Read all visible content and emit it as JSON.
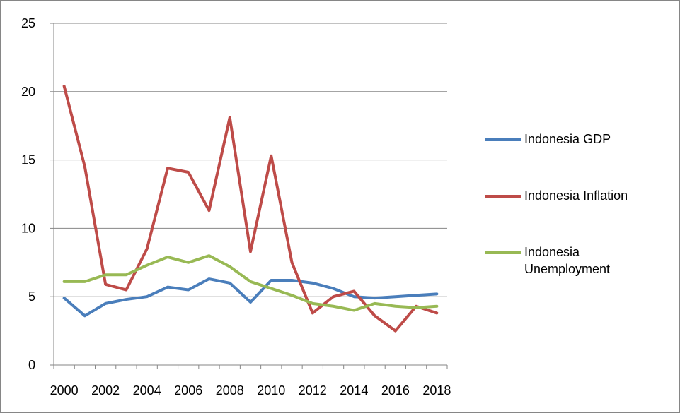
{
  "chart_data": {
    "type": "line",
    "categories": [
      "2000",
      null,
      "2002",
      null,
      "2004",
      null,
      "2006",
      null,
      "2008",
      null,
      "2010",
      null,
      "2012",
      null,
      "2014",
      null,
      "2016",
      null,
      "2018"
    ],
    "series": [
      {
        "name": "Indonesia GDP",
        "color": "#4a7ebb",
        "values": [
          4.9,
          3.6,
          4.5,
          4.8,
          5.0,
          5.7,
          5.5,
          6.3,
          6.0,
          4.6,
          6.2,
          6.2,
          6.0,
          5.6,
          5.0,
          4.9,
          5.0,
          5.1,
          5.2
        ]
      },
      {
        "name": "Indonesia Inflation",
        "color": "#be4b48",
        "values": [
          20.4,
          14.5,
          5.9,
          5.5,
          8.5,
          14.4,
          14.1,
          11.3,
          18.1,
          8.3,
          15.3,
          7.5,
          3.8,
          5.0,
          5.4,
          3.6,
          2.5,
          4.3,
          3.8
        ]
      },
      {
        "name": "Indonesia Unemployment",
        "color": "#98b954",
        "values": [
          6.1,
          6.1,
          6.6,
          6.6,
          7.3,
          7.9,
          7.5,
          8.0,
          7.2,
          6.1,
          5.6,
          5.1,
          4.5,
          4.3,
          4.0,
          4.5,
          4.3,
          4.2,
          4.3
        ]
      }
    ],
    "ylim": [
      0,
      25
    ],
    "yticks": [
      0,
      5,
      10,
      15,
      20,
      25
    ],
    "grid": true,
    "legend": "right"
  }
}
